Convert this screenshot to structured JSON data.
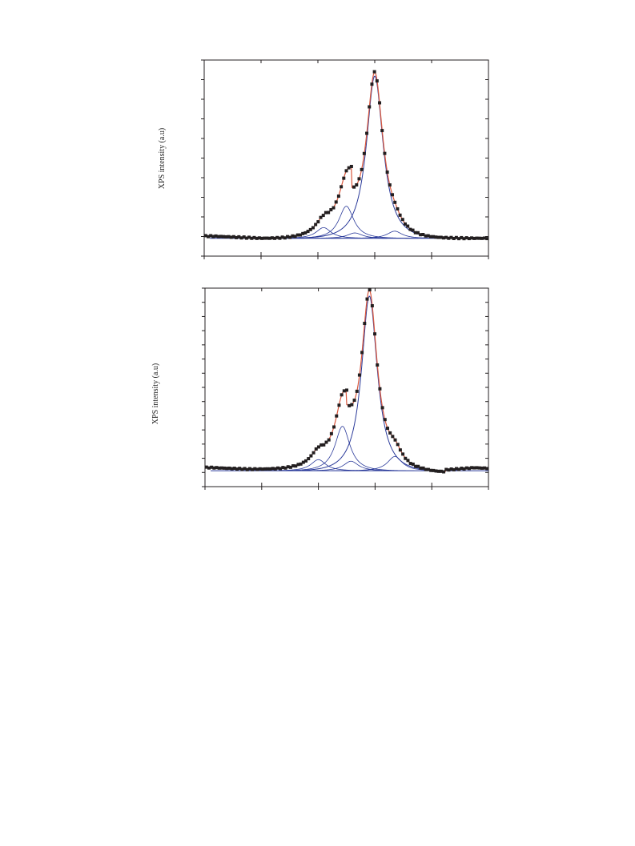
{
  "chart_data": [
    {
      "type": "scatter",
      "title": "",
      "xlabel": "",
      "ylabel": "XPS intensity (a.u)",
      "xlim": [
        0,
        100
      ],
      "ylim": [
        -0.1,
        1.0
      ],
      "x_ticks": 5,
      "y_ticks": 10,
      "grid": false,
      "legend": "none",
      "colors": {
        "data": "#231f20",
        "fit": "#d9573d",
        "components": "#2a3a9a",
        "baseline": "#2a3a9a"
      },
      "baseline_shape": [
        [
          0,
          0.012
        ],
        [
          3,
          0.01
        ],
        [
          10,
          0.003
        ],
        [
          20,
          0.0
        ],
        [
          25,
          0.0
        ],
        [
          30,
          0.008
        ],
        [
          35,
          0.03
        ],
        [
          40,
          0.06
        ],
        [
          45,
          0.11
        ],
        [
          50,
          0.18
        ],
        [
          52,
          0.22
        ],
        [
          53,
          0.0
        ],
        [
          70,
          0.0
        ],
        [
          75,
          0.0
        ],
        [
          80,
          -0.002
        ],
        [
          85,
          -0.003
        ],
        [
          90,
          0.0
        ],
        [
          100,
          0.0
        ]
      ],
      "components": [
        {
          "center": 60.0,
          "amplitude": 0.91,
          "width": 3.6
        },
        {
          "center": 50.0,
          "amplitude": 0.18,
          "width": 3.2
        },
        {
          "center": 42.0,
          "amplitude": 0.06,
          "width": 3.2
        },
        {
          "center": 53.0,
          "amplitude": 0.03,
          "width": 3.2
        },
        {
          "center": 67.0,
          "amplitude": 0.04,
          "width": 3.2
        }
      ],
      "fit_peak": {
        "x": 60.0,
        "y": 0.92
      }
    },
    {
      "type": "scatter",
      "title": "",
      "xlabel": "",
      "ylabel": "XPS intensity (a.u)",
      "xlim": [
        0,
        100
      ],
      "ylim": [
        -0.1,
        1.15
      ],
      "x_ticks": 5,
      "y_ticks": 14,
      "grid": false,
      "legend": "none",
      "colors": {
        "data": "#231f20",
        "fit": "#d9573d",
        "components": "#2a3a9a",
        "baseline": "#2a3a9a"
      },
      "components": [
        {
          "center": 58.0,
          "amplitude": 1.1,
          "width": 3.4
        },
        {
          "center": 48.5,
          "amplitude": 0.28,
          "width": 3.2
        },
        {
          "center": 40.0,
          "amplitude": 0.07,
          "width": 3.2
        },
        {
          "center": 51.5,
          "amplitude": 0.06,
          "width": 3.2
        },
        {
          "center": 67.0,
          "amplitude": 0.09,
          "width": 3.2
        }
      ],
      "fit_peak": {
        "x": 58.0,
        "y": 1.09
      }
    }
  ]
}
